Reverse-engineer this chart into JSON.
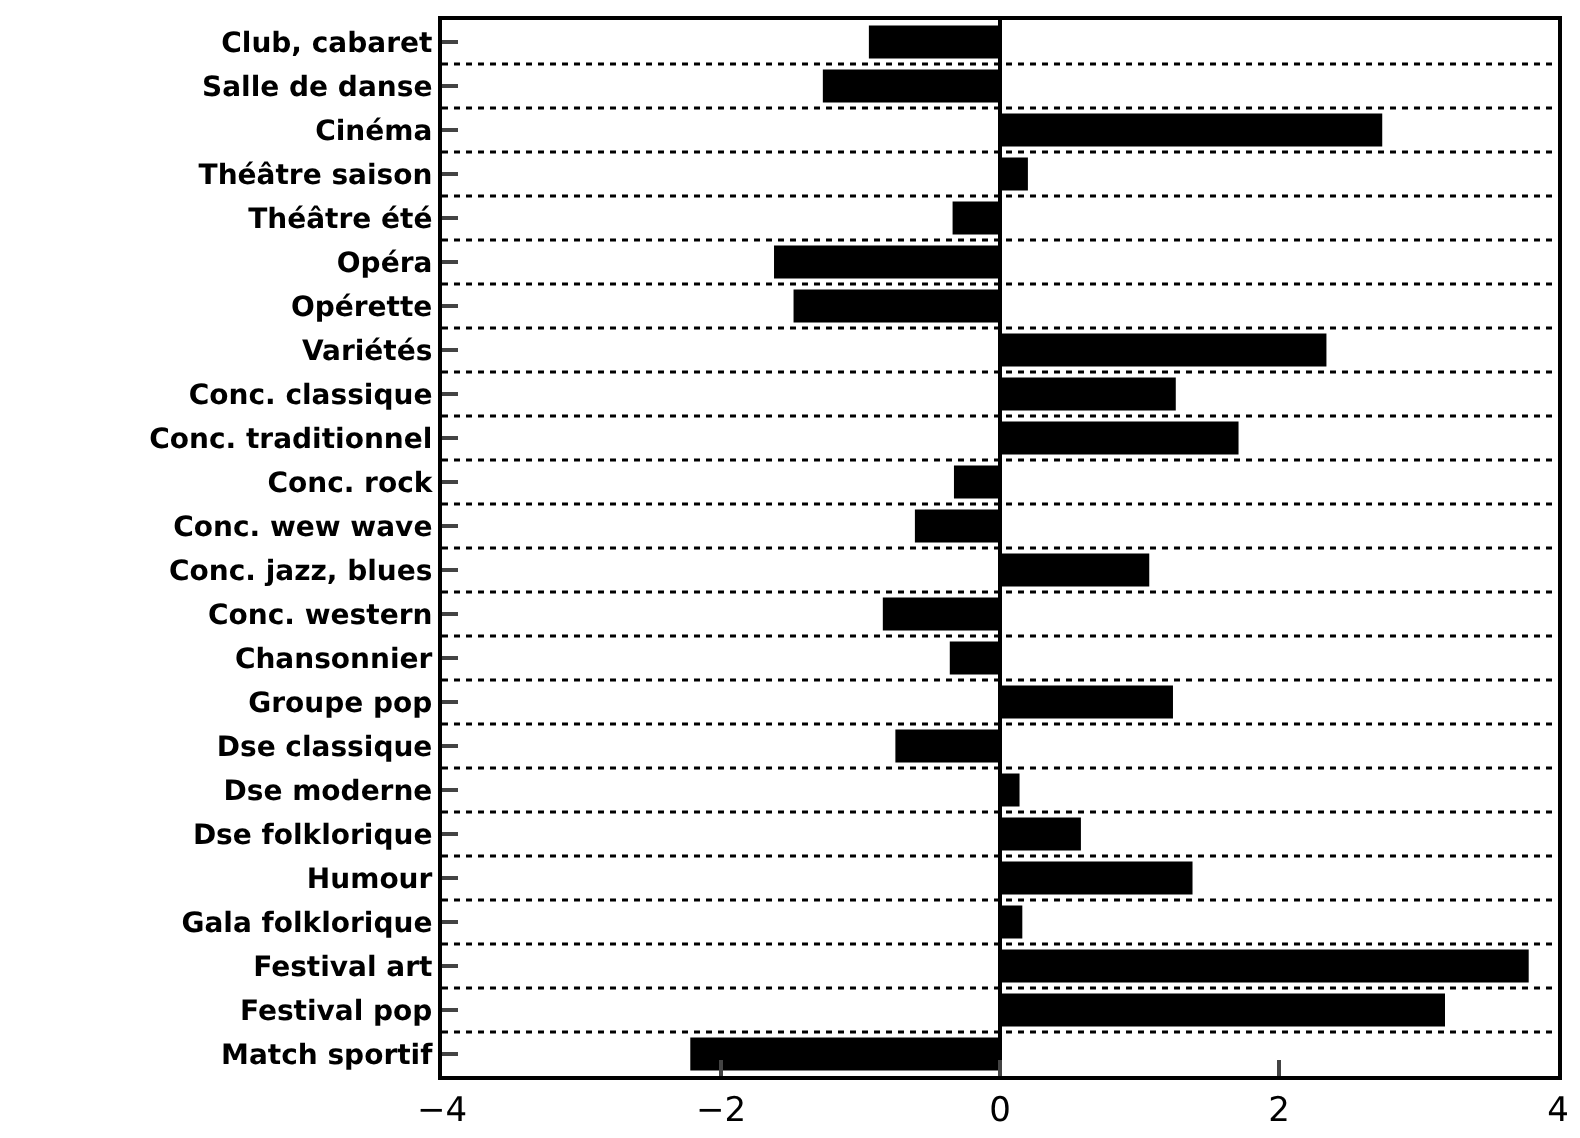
{
  "chart_data": {
    "type": "bar",
    "orientation": "horizontal",
    "categories": [
      "Club, cabaret",
      "Salle de danse",
      "Cinéma",
      "Théâtre saison",
      "Théâtre été",
      "Opéra",
      "Opérette",
      "Variétés",
      "Conc. classique",
      "Conc. traditionnel",
      "Conc. rock",
      "Conc. wew wave",
      "Conc. jazz, blues",
      "Conc. western",
      "Chansonnier",
      "Groupe pop",
      "Dse classique",
      "Dse moderne",
      "Dse folklorique",
      "Humour",
      "Gala folklorique",
      "Festival art",
      "Festival pop",
      "Match sportif"
    ],
    "values": [
      -0.94,
      -1.27,
      2.74,
      0.2,
      -0.34,
      -1.62,
      -1.48,
      2.34,
      1.26,
      1.71,
      -0.33,
      -0.61,
      1.07,
      -0.84,
      -0.36,
      1.24,
      -0.75,
      0.14,
      0.58,
      1.38,
      0.16,
      3.79,
      3.19,
      -2.22
    ],
    "color": "#000000",
    "xlim": [
      -4,
      4
    ],
    "xticks": [
      -4,
      -2,
      0,
      2,
      4
    ],
    "grid": "y",
    "legend": false
  }
}
